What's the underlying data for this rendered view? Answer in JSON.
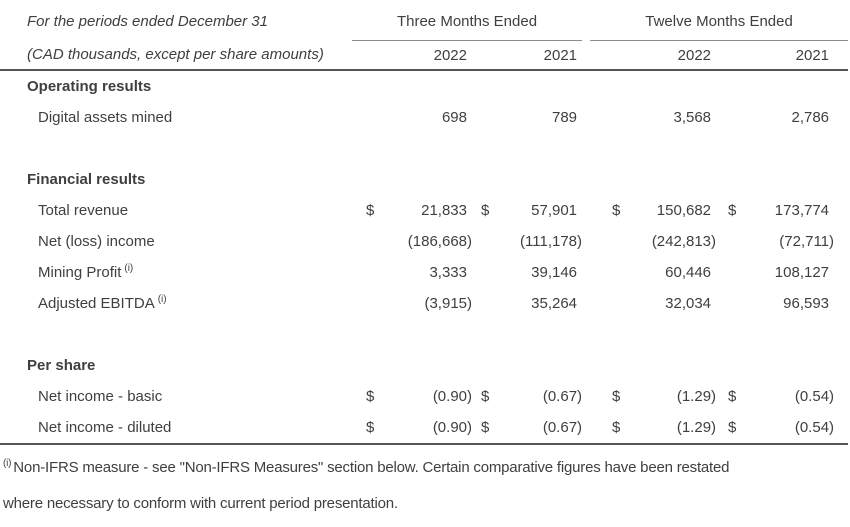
{
  "table": {
    "header": {
      "caption_line1": "For the periods ended December 31",
      "caption_line2": "(CAD thousands, except per share amounts)",
      "col_groups": [
        "Three Months Ended",
        "Twelve Months Ended"
      ],
      "years": [
        "2022",
        "2021",
        "2022",
        "2021"
      ]
    },
    "sections": [
      {
        "title": "Operating results",
        "rows": [
          {
            "label": "Digital assets mined",
            "values": [
              "698",
              "789",
              "3,568",
              "2,786"
            ]
          }
        ]
      },
      {
        "title": "Financial results",
        "rows": [
          {
            "label": "Total revenue",
            "cur": [
              "$",
              "$",
              "$",
              "$"
            ],
            "values": [
              "21,833",
              "57,901",
              "150,682",
              "173,774"
            ]
          },
          {
            "label": "Net (loss) income",
            "values": [
              "(186,668)",
              "(111,178)",
              "(242,813)",
              "(72,711)"
            ]
          },
          {
            "label": "Mining Profit",
            "sup": "(i)",
            "values": [
              "3,333",
              "39,146",
              "60,446",
              "108,127"
            ]
          },
          {
            "label": "Adjusted EBITDA",
            "sup": "(i)",
            "values": [
              "(3,915)",
              "35,264",
              "32,034",
              "96,593"
            ]
          }
        ]
      },
      {
        "title": "Per share",
        "rows": [
          {
            "label": "Net income - basic",
            "cur": [
              "$",
              "$",
              "$",
              "$"
            ],
            "values": [
              "(0.90)",
              "(0.67)",
              "(1.29)",
              "(0.54)"
            ]
          },
          {
            "label": "Net income - diluted",
            "cur": [
              "$",
              "$",
              "$",
              "$"
            ],
            "values": [
              "(0.90)",
              "(0.67)",
              "(1.29)",
              "(0.54)"
            ]
          }
        ]
      }
    ],
    "footnote": {
      "sup": "(i)",
      "line1": "Non-IFRS measure - see \"Non-IFRS Measures\" section below. Certain comparative figures have been restated",
      "line2": "where necessary to conform with current period presentation."
    }
  }
}
